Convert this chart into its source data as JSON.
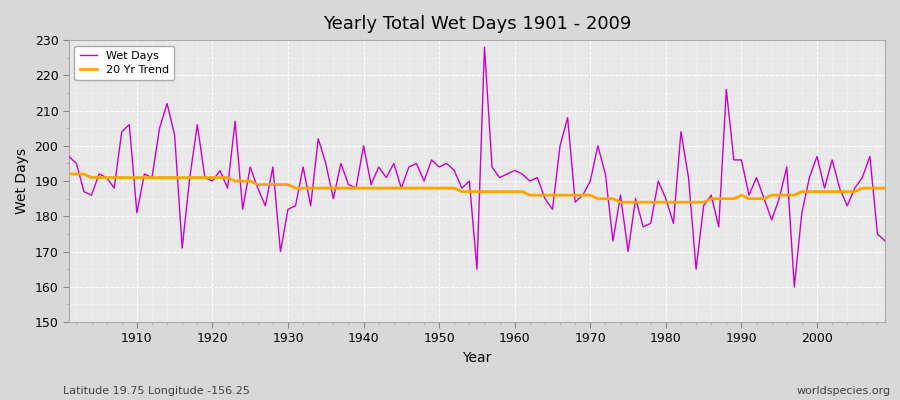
{
  "title": "Yearly Total Wet Days 1901 - 2009",
  "xlabel": "Year",
  "ylabel": "Wet Days",
  "subtitle": "Latitude 19.75 Longitude -156.25",
  "watermark": "worldspecies.org",
  "ylim": [
    150,
    230
  ],
  "yticks": [
    150,
    160,
    170,
    180,
    190,
    200,
    210,
    220,
    230
  ],
  "line_color": "#cc00cc",
  "trend_color": "#ffa500",
  "fig_facecolor": "#d8d8d8",
  "plot_facecolor": "#e8e8e8",
  "years": [
    1901,
    1902,
    1903,
    1904,
    1905,
    1906,
    1907,
    1908,
    1909,
    1910,
    1911,
    1912,
    1913,
    1914,
    1915,
    1916,
    1917,
    1918,
    1919,
    1920,
    1921,
    1922,
    1923,
    1924,
    1925,
    1926,
    1927,
    1928,
    1929,
    1930,
    1931,
    1932,
    1933,
    1934,
    1935,
    1936,
    1937,
    1938,
    1939,
    1940,
    1941,
    1942,
    1943,
    1944,
    1945,
    1946,
    1947,
    1948,
    1949,
    1950,
    1951,
    1952,
    1953,
    1954,
    1955,
    1956,
    1957,
    1958,
    1959,
    1960,
    1961,
    1962,
    1963,
    1964,
    1965,
    1966,
    1967,
    1968,
    1969,
    1970,
    1971,
    1972,
    1973,
    1974,
    1975,
    1976,
    1977,
    1978,
    1979,
    1980,
    1981,
    1982,
    1983,
    1984,
    1985,
    1986,
    1987,
    1988,
    1989,
    1990,
    1991,
    1992,
    1993,
    1994,
    1995,
    1996,
    1997,
    1998,
    1999,
    2000,
    2001,
    2002,
    2003,
    2004,
    2005,
    2006,
    2007,
    2008,
    2009
  ],
  "wet_days": [
    197,
    195,
    187,
    186,
    192,
    191,
    188,
    204,
    206,
    181,
    192,
    191,
    205,
    212,
    203,
    171,
    191,
    206,
    191,
    190,
    193,
    188,
    207,
    182,
    194,
    188,
    183,
    194,
    170,
    182,
    183,
    194,
    183,
    202,
    195,
    185,
    195,
    189,
    188,
    200,
    189,
    194,
    191,
    195,
    188,
    194,
    195,
    190,
    196,
    194,
    195,
    193,
    188,
    190,
    165,
    228,
    194,
    191,
    192,
    193,
    192,
    190,
    191,
    185,
    182,
    200,
    208,
    184,
    186,
    190,
    200,
    192,
    173,
    186,
    170,
    185,
    177,
    178,
    190,
    185,
    178,
    204,
    191,
    165,
    183,
    186,
    177,
    216,
    196,
    196,
    186,
    191,
    185,
    179,
    185,
    194,
    160,
    181,
    191,
    197,
    188,
    196,
    188,
    183,
    188,
    191,
    197,
    175,
    173
  ],
  "trend": [
    192,
    192,
    192,
    191,
    191,
    191,
    191,
    191,
    191,
    191,
    191,
    191,
    191,
    191,
    191,
    191,
    191,
    191,
    191,
    191,
    191,
    191,
    190,
    190,
    190,
    189,
    189,
    189,
    189,
    189,
    188,
    188,
    188,
    188,
    188,
    188,
    188,
    188,
    188,
    188,
    188,
    188,
    188,
    188,
    188,
    188,
    188,
    188,
    188,
    188,
    188,
    188,
    187,
    187,
    187,
    187,
    187,
    187,
    187,
    187,
    187,
    186,
    186,
    186,
    186,
    186,
    186,
    186,
    186,
    186,
    185,
    185,
    185,
    184,
    184,
    184,
    184,
    184,
    184,
    184,
    184,
    184,
    184,
    184,
    184,
    185,
    185,
    185,
    185,
    186,
    185,
    185,
    185,
    186,
    186,
    186,
    186,
    187,
    187,
    187,
    187,
    187,
    187,
    187,
    187,
    188,
    188,
    188,
    188
  ]
}
